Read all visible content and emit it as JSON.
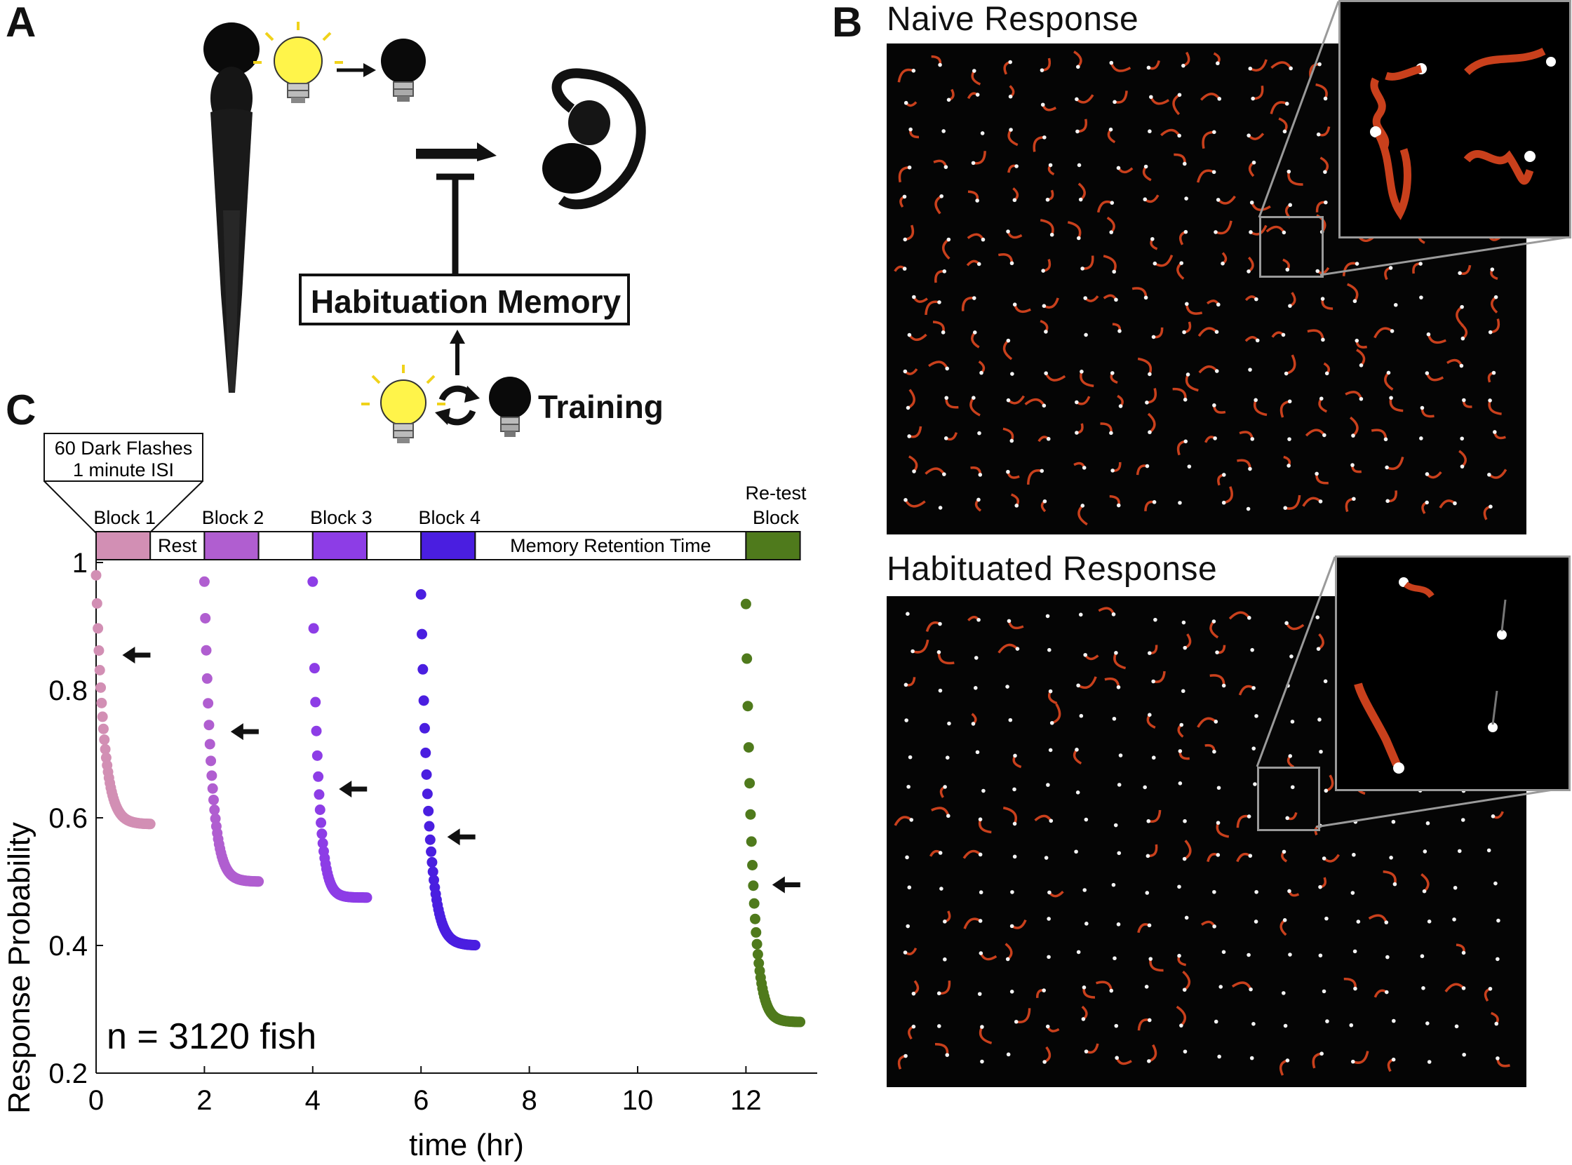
{
  "panels": {
    "a_letter": "A",
    "b_letter": "B",
    "c_letter": "C"
  },
  "panel_a": {
    "habituation_label": "Habituation Memory",
    "training_label": "Training"
  },
  "panel_b": {
    "naive_title": "Naive Response",
    "habituated_title": "Habituated Response"
  },
  "chart_data": {
    "type": "scatter",
    "xlabel": "time (hr)",
    "ylabel": "Response Probability",
    "xlim": [
      0,
      13.3
    ],
    "ylim": [
      0.2,
      1.0
    ],
    "xticks": [
      0,
      2,
      4,
      6,
      8,
      10,
      12
    ],
    "yticks": [
      0.2,
      0.4,
      0.6,
      0.8,
      1
    ],
    "ytick_labels": [
      "0.2",
      "0.4",
      "0.6",
      "0.8",
      "1"
    ],
    "annotation": "n = 3120 fish",
    "callout": [
      "60 Dark Flashes",
      "1 minute ISI"
    ],
    "timeline": [
      {
        "label": "Block 1",
        "start": 0,
        "end": 1,
        "color": "#d28fb4"
      },
      {
        "label": "Rest",
        "start": 1,
        "end": 2,
        "color": "#ffffff"
      },
      {
        "label": "Block 2",
        "start": 2,
        "end": 3,
        "color": "#b05ed0"
      },
      {
        "label": "",
        "start": 3,
        "end": 4,
        "color": "#ffffff"
      },
      {
        "label": "Block 3",
        "start": 4,
        "end": 5,
        "color": "#8d3de6"
      },
      {
        "label": "",
        "start": 5,
        "end": 6,
        "color": "#ffffff"
      },
      {
        "label": "Block 4",
        "start": 6,
        "end": 7,
        "color": "#4a1ee0"
      },
      {
        "label": "Memory Retention Time",
        "start": 7,
        "end": 12,
        "color": "#ffffff"
      },
      {
        "label": "Re-test Block",
        "start": 12,
        "end": 13,
        "color": "#4f7a1c"
      }
    ],
    "series": [
      {
        "start": 0,
        "color": "#d28fb4",
        "p_start": 0.98,
        "p_end": 0.59,
        "k": 0.12,
        "arrow_x": 0.2,
        "arrow_y": 0.855
      },
      {
        "start": 2,
        "color": "#b05ed0",
        "p_start": 0.97,
        "p_end": 0.5,
        "k": 0.13,
        "arrow_x": 2.2,
        "arrow_y": 0.735
      },
      {
        "start": 4,
        "color": "#8d3de6",
        "p_start": 0.97,
        "p_end": 0.475,
        "k": 0.16,
        "arrow_x": 4.2,
        "arrow_y": 0.645
      },
      {
        "start": 6,
        "color": "#4a1ee0",
        "p_start": 0.95,
        "p_end": 0.4,
        "k": 0.12,
        "arrow_x": 6.2,
        "arrow_y": 0.57
      },
      {
        "start": 12,
        "color": "#4f7a1c",
        "p_start": 0.935,
        "p_end": 0.28,
        "k": 0.14,
        "arrow_x": 12.2,
        "arrow_y": 0.495
      }
    ]
  }
}
